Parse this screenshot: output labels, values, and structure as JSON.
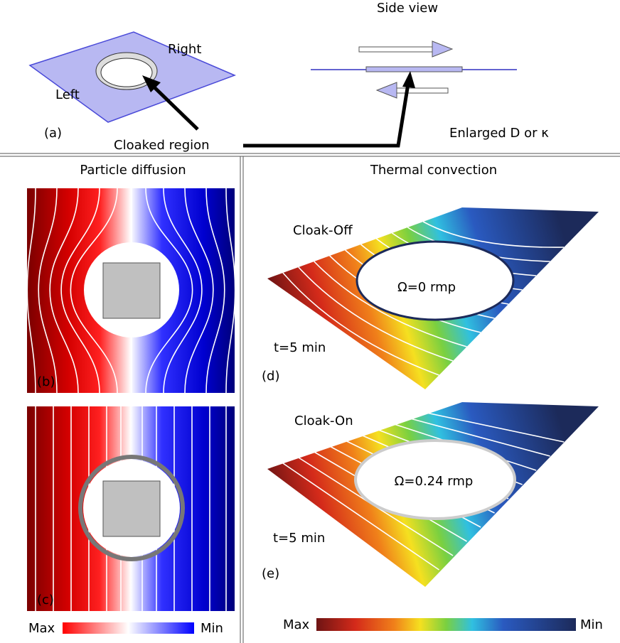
{
  "panel_a": {
    "side_view_title": "Side view",
    "right_label": "Right",
    "left_label": "Left",
    "panel_label": "(a)",
    "pointer_label": "Cloaked region",
    "enlarged_label": "Enlarged D or κ"
  },
  "particle_diffusion": {
    "title": "Particle diffusion",
    "panel_b_label": "(b)",
    "panel_c_label": "(c)",
    "colorbar_max": "Max",
    "colorbar_min": "Min"
  },
  "thermal_convection": {
    "title": "Thermal convection",
    "panel_d": {
      "state": "Cloak-Off",
      "rotation": "Ω=0 rmp",
      "time": "t=5 min",
      "label": "(d)"
    },
    "panel_e": {
      "state": "Cloak-On",
      "rotation": "Ω=0.24 rmp",
      "time": "t=5 min",
      "label": "(e)"
    },
    "colorbar_max": "Max",
    "colorbar_min": "Min"
  }
}
